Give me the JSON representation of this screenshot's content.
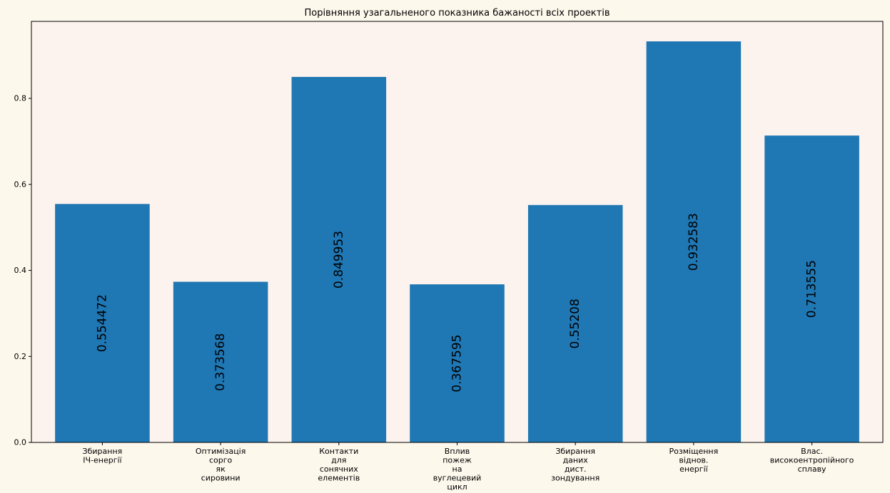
{
  "chart_data": {
    "type": "bar",
    "title": "Порівняння узагальненого показника бажаності всіх проектів",
    "xlabel": "",
    "ylabel": "",
    "categories": [
      [
        "Збирання",
        "ІЧ-енергії"
      ],
      [
        "Оптимізація",
        "сорго",
        "як",
        "сировини"
      ],
      [
        "Контакти",
        "для",
        "сонячних",
        "елементів"
      ],
      [
        "Вплив",
        "пожеж",
        "на",
        "вуглецевий",
        "цикл"
      ],
      [
        "Збирання",
        "даних",
        "дист.",
        "зондування"
      ],
      [
        "Розміщення",
        "віднов.",
        "енергії"
      ],
      [
        "Влас.",
        "високоентропійного",
        "сплаву"
      ]
    ],
    "values": [
      0.554472,
      0.373568,
      0.849953,
      0.367595,
      0.55208,
      0.932583,
      0.713555
    ],
    "value_labels": [
      "0.554472",
      "0.373568",
      "0.849953",
      "0.367595",
      "0.55208",
      "0.932583",
      "0.713555"
    ],
    "ylim": [
      0,
      0.9791
    ],
    "yticks": [
      0.0,
      0.2,
      0.4,
      0.6,
      0.8
    ],
    "ytick_labels": [
      "0.0",
      "0.2",
      "0.4",
      "0.6",
      "0.8"
    ],
    "grid": false,
    "colors": {
      "bar": "#1f77b4",
      "plot_background": "#fdf3ee",
      "figure_background": "#fdf8ec",
      "axis": "#000000"
    }
  }
}
